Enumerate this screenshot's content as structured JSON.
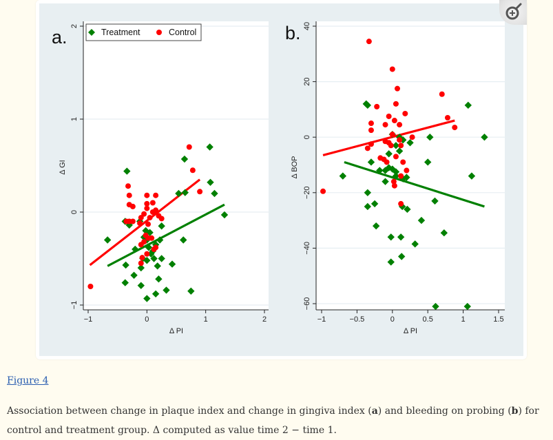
{
  "figure": {
    "link_label": "Figure 4",
    "caption": {
      "part1": "Association between change in plaque index and change in gingiva index (",
      "bold_a": "a",
      "part2": ") and bleeding on probing (",
      "bold_b": "b",
      "part3": ") for control and treatment group. Δ computed as value time 2 − time 1."
    },
    "zoom_icon": "zoom-in-magnifier-icon"
  },
  "colors": {
    "treatment": "#008000",
    "control": "#ff0000",
    "panel_bg": "#e8eff2",
    "page_bg": "#fffcf0",
    "link": "#2a5db0"
  },
  "legend": {
    "treatment_label": "Treatment",
    "control_label": "Control"
  },
  "chart_data": [
    {
      "type": "scatter",
      "panel_label": "a.",
      "title": "",
      "xlabel": "Δ PI",
      "ylabel": "Δ GI",
      "xlim": [
        -1.1,
        2.05
      ],
      "ylim": [
        -1.05,
        2.0
      ],
      "xticks": [
        -1,
        0,
        1,
        2
      ],
      "xtick_labels": [
        "−1",
        "0",
        "1",
        "2"
      ],
      "yticks": [
        -1,
        0,
        1,
        2
      ],
      "ytick_labels": [
        "−1",
        "0",
        "1",
        "2"
      ],
      "grid": true,
      "legend_position": "top-left",
      "series": [
        {
          "name": "Treatment",
          "marker": "diamond",
          "points": [
            [
              -0.34,
              0.44
            ],
            [
              1.07,
              0.7
            ],
            [
              0.64,
              0.57
            ],
            [
              1.08,
              0.32
            ],
            [
              1.15,
              0.2
            ],
            [
              0.54,
              0.2
            ],
            [
              0.65,
              0.21
            ],
            [
              1.32,
              -0.03
            ],
            [
              -0.67,
              -0.3
            ],
            [
              -0.37,
              -0.1
            ],
            [
              -0.3,
              -0.14
            ],
            [
              0.25,
              -0.15
            ],
            [
              -0.2,
              -0.4
            ],
            [
              0.62,
              -0.3
            ],
            [
              -0.36,
              -0.57
            ],
            [
              -0.22,
              -0.68
            ],
            [
              -0.37,
              -0.76
            ],
            [
              -0.1,
              -0.6
            ],
            [
              -0.1,
              -0.79
            ],
            [
              0.0,
              -0.93
            ],
            [
              0.15,
              -0.88
            ],
            [
              0.33,
              -0.84
            ],
            [
              0.75,
              -0.85
            ],
            [
              0.43,
              -0.56
            ],
            [
              0.2,
              -0.72
            ],
            [
              0.12,
              -0.5
            ],
            [
              0.18,
              -0.58
            ],
            [
              0.0,
              -0.52
            ],
            [
              -0.07,
              -0.5
            ],
            [
              0.07,
              -0.45
            ],
            [
              0.03,
              -0.38
            ],
            [
              0.22,
              -0.3
            ],
            [
              0.15,
              -0.35
            ],
            [
              -0.05,
              -0.27
            ],
            [
              -0.02,
              -0.2
            ],
            [
              0.05,
              -0.22
            ],
            [
              -0.12,
              -0.1
            ],
            [
              0.0,
              -0.3
            ],
            [
              0.1,
              -0.42
            ],
            [
              0.25,
              -0.5
            ]
          ],
          "fit": [
            [
              -0.67,
              -0.58
            ],
            [
              1.32,
              0.08
            ]
          ]
        },
        {
          "name": "Control",
          "marker": "circle",
          "points": [
            [
              -0.96,
              -0.8
            ],
            [
              0.72,
              0.7
            ],
            [
              0.78,
              0.45
            ],
            [
              0.9,
              0.22
            ],
            [
              -0.32,
              0.28
            ],
            [
              -0.3,
              0.18
            ],
            [
              -0.3,
              0.08
            ],
            [
              -0.24,
              0.06
            ],
            [
              0.0,
              0.18
            ],
            [
              0.15,
              0.18
            ],
            [
              0.0,
              0.09
            ],
            [
              0.0,
              0.04
            ],
            [
              0.1,
              0.1
            ],
            [
              0.1,
              0.0
            ],
            [
              0.15,
              0.02
            ],
            [
              -0.05,
              -0.02
            ],
            [
              -0.1,
              -0.06
            ],
            [
              0.05,
              -0.06
            ],
            [
              0.2,
              -0.04
            ],
            [
              0.25,
              -0.07
            ],
            [
              -0.35,
              -0.1
            ],
            [
              -0.3,
              -0.1
            ],
            [
              -0.24,
              -0.1
            ],
            [
              -0.12,
              -0.12
            ],
            [
              0.02,
              -0.13
            ],
            [
              -0.02,
              -0.25
            ],
            [
              0.02,
              -0.28
            ],
            [
              0.08,
              -0.28
            ],
            [
              -0.1,
              -0.35
            ],
            [
              -0.05,
              -0.32
            ],
            [
              0.12,
              -0.4
            ],
            [
              -0.08,
              -0.49
            ],
            [
              0.0,
              -0.45
            ],
            [
              -0.1,
              -0.55
            ],
            [
              0.15,
              -0.38
            ]
          ],
          "fit": [
            [
              -0.97,
              -0.57
            ],
            [
              0.9,
              0.35
            ]
          ]
        }
      ]
    },
    {
      "type": "scatter",
      "panel_label": "b.",
      "title": "",
      "xlabel": "Δ PI",
      "ylabel": "Δ BOP",
      "xlim": [
        -1.05,
        1.6
      ],
      "ylim": [
        -61,
        40
      ],
      "xticks": [
        -1,
        -0.5,
        0,
        0.5,
        1,
        1.5
      ],
      "xtick_labels": [
        "−1",
        "−0.5",
        "0",
        "0.5",
        "1",
        "1.5"
      ],
      "yticks": [
        -60,
        -40,
        -20,
        0,
        20,
        40
      ],
      "ytick_labels": [
        "−60",
        "−40",
        "−20",
        "0",
        "20",
        "40"
      ],
      "grid": true,
      "series": [
        {
          "name": "Treatment",
          "marker": "diamond",
          "points": [
            [
              -0.37,
              12
            ],
            [
              -0.35,
              11.5
            ],
            [
              1.07,
              11.5
            ],
            [
              1.3,
              0
            ],
            [
              0.53,
              0
            ],
            [
              -0.7,
              -14
            ],
            [
              -0.35,
              -20
            ],
            [
              -0.35,
              -25
            ],
            [
              -0.25,
              -24
            ],
            [
              -0.23,
              -32
            ],
            [
              -0.02,
              -45
            ],
            [
              0.13,
              -43
            ],
            [
              -0.02,
              -36
            ],
            [
              0.12,
              -36
            ],
            [
              0.32,
              -38.5
            ],
            [
              0.21,
              -26
            ],
            [
              0.41,
              -30
            ],
            [
              0.6,
              -23
            ],
            [
              0.73,
              -34.5
            ],
            [
              0.5,
              -9
            ],
            [
              1.12,
              -14
            ],
            [
              0.61,
              -61
            ],
            [
              1.06,
              -61
            ],
            [
              0.14,
              -25
            ],
            [
              -0.3,
              -9
            ],
            [
              -0.18,
              -12
            ],
            [
              -0.1,
              -12
            ],
            [
              -0.05,
              -11
            ],
            [
              0.0,
              -11.5
            ],
            [
              0.05,
              -12.5
            ],
            [
              -0.1,
              -16
            ],
            [
              0.05,
              -14
            ],
            [
              0.15,
              -15
            ],
            [
              0.2,
              -14.5
            ],
            [
              0.1,
              -5
            ],
            [
              -0.05,
              -6
            ],
            [
              0.05,
              -3
            ],
            [
              0.15,
              -1
            ],
            [
              0.0,
              1
            ],
            [
              0.1,
              0
            ],
            [
              0.25,
              -2
            ]
          ],
          "fit": [
            [
              -0.68,
              -9
            ],
            [
              1.3,
              -25
            ]
          ]
        },
        {
          "name": "Control",
          "marker": "circle",
          "points": [
            [
              -0.98,
              -19.5
            ],
            [
              -0.33,
              34.5
            ],
            [
              0.0,
              24.5
            ],
            [
              0.07,
              17.5
            ],
            [
              0.7,
              15.5
            ],
            [
              0.05,
              12
            ],
            [
              -0.22,
              11
            ],
            [
              0.78,
              7
            ],
            [
              0.88,
              3.5
            ],
            [
              0.18,
              8.5
            ],
            [
              -0.05,
              7.5
            ],
            [
              0.03,
              6
            ],
            [
              -0.1,
              4.5
            ],
            [
              0.1,
              4.5
            ],
            [
              -0.3,
              5
            ],
            [
              -0.3,
              2.5
            ],
            [
              -0.1,
              -1.5
            ],
            [
              -0.05,
              -2
            ],
            [
              -0.02,
              -3
            ],
            [
              0.0,
              1
            ],
            [
              0.1,
              -1
            ],
            [
              0.12,
              -3
            ],
            [
              0.28,
              0
            ],
            [
              -0.35,
              -4
            ],
            [
              -0.3,
              -2.5
            ],
            [
              0.05,
              -7
            ],
            [
              -0.17,
              -7.5
            ],
            [
              -0.12,
              -8
            ],
            [
              -0.08,
              -9
            ],
            [
              0.15,
              -9
            ],
            [
              0.2,
              -12
            ],
            [
              0.12,
              -14
            ],
            [
              0.02,
              -16
            ],
            [
              0.03,
              -17.5
            ],
            [
              0.12,
              -24
            ]
          ],
          "fit": [
            [
              -0.98,
              -6.5
            ],
            [
              0.88,
              6
            ]
          ]
        }
      ]
    }
  ]
}
